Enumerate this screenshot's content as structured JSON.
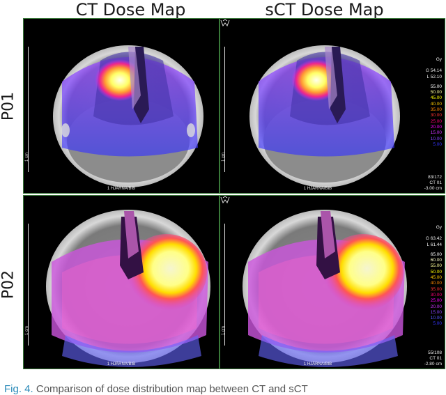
{
  "columns": {
    "ct": "CT Dose Map",
    "sct": "sCT Dose Map"
  },
  "rows": {
    "p01": "P01",
    "p02": "P02"
  },
  "ruler_label": "1 cm",
  "roi_label": "1 HJÄRNA/BIB",
  "unit": "Gy",
  "panels": {
    "p01": {
      "g": "G 54.14",
      "l": "L 52.10",
      "levels": [
        "55.00",
        "50.00",
        "45.00",
        "40.00",
        "35.00",
        "30.00",
        "25.00",
        "20.00",
        "15.00",
        "10.00",
        "5.00"
      ],
      "slice": "83/172",
      "series": "CT 01",
      "position": "-3.00 cm"
    },
    "p02": {
      "g": "G 63.42",
      "l": "L 61.44",
      "levels": [
        "65.00",
        "60.00",
        "55.00",
        "50.00",
        "45.00",
        "40.00",
        "35.00",
        "30.00",
        "25.00",
        "20.00",
        "15.00",
        "10.00",
        "5.00"
      ],
      "slice": "55/108",
      "series": "CT 01",
      "position": "-2.80 cm"
    }
  },
  "level_colors": {
    "p01": [
      "#ffffff",
      "#ffff99",
      "#ffff00",
      "#ffcc00",
      "#ff8800",
      "#ff3333",
      "#ff0077",
      "#ff00ff",
      "#cc33ff",
      "#8844ff",
      "#3333ff"
    ],
    "p02": [
      "#ffffff",
      "#ffffcc",
      "#ffff99",
      "#ffff00",
      "#ffcc00",
      "#ff8800",
      "#ff3333",
      "#ff0077",
      "#ff00ff",
      "#cc33ff",
      "#8844ff",
      "#5555ff",
      "#3333ff"
    ]
  },
  "caption": {
    "fig": "Fig. 4.",
    "text": "Comparison of dose distribution map between CT and sCT"
  }
}
